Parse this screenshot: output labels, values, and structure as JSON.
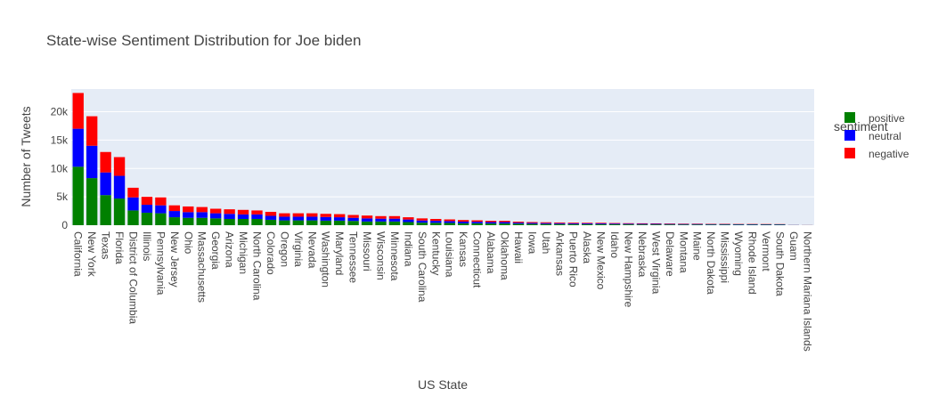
{
  "chart_data": {
    "type": "bar",
    "stacked": true,
    "title": "State-wise Sentiment Distribution for Joe biden",
    "xlabel": "US State",
    "ylabel": "Number of Tweets",
    "ylim": [
      0,
      24000
    ],
    "yticks": [
      0,
      5000,
      10000,
      15000,
      20000
    ],
    "ytick_labels": [
      "0",
      "5k",
      "10k",
      "15k",
      "20k"
    ],
    "grid": true,
    "legend_title": "sentiment",
    "legend_position": "top-right",
    "plot_background": "#e5ecf6",
    "categories": [
      "California",
      "New York",
      "Texas",
      "Florida",
      "District of Columbia",
      "Illinois",
      "Pennsylvania",
      "New Jersey",
      "Ohio",
      "Massachusetts",
      "Georgia",
      "Arizona",
      "Michigan",
      "North Carolina",
      "Colorado",
      "Oregon",
      "Virginia",
      "Nevada",
      "Washington",
      "Maryland",
      "Tennessee",
      "Missouri",
      "Wisconsin",
      "Minnesota",
      "Indiana",
      "South Carolina",
      "Kentucky",
      "Louisiana",
      "Kansas",
      "Connecticut",
      "Alabama",
      "Oklahoma",
      "Hawaii",
      "Iowa",
      "Utah",
      "Arkansas",
      "Puerto Rico",
      "Alaska",
      "New Mexico",
      "Idaho",
      "New Hampshire",
      "Nebraska",
      "West Virginia",
      "Delaware",
      "Montana",
      "Maine",
      "North Dakota",
      "Mississippi",
      "Wyoming",
      "Rhode Island",
      "Vermont",
      "South Dakota",
      "Guam",
      "Northern Mariana Islands"
    ],
    "series": [
      {
        "name": "positive",
        "color": "#008000",
        "values": [
          10300,
          8300,
          5300,
          4700,
          2600,
          2200,
          2100,
          1400,
          1300,
          1300,
          1200,
          1100,
          1100,
          1100,
          950,
          850,
          850,
          850,
          800,
          800,
          750,
          650,
          650,
          650,
          550,
          450,
          420,
          400,
          330,
          330,
          300,
          300,
          250,
          220,
          200,
          190,
          180,
          170,
          170,
          150,
          140,
          130,
          130,
          120,
          110,
          110,
          100,
          100,
          90,
          90,
          80,
          80,
          20,
          10
        ]
      },
      {
        "name": "neutral",
        "color": "#0000ff",
        "values": [
          6700,
          5700,
          4000,
          4000,
          2300,
          1400,
          1400,
          1100,
          1000,
          1000,
          900,
          900,
          800,
          800,
          700,
          650,
          650,
          650,
          650,
          600,
          550,
          550,
          500,
          500,
          450,
          380,
          350,
          320,
          300,
          280,
          250,
          250,
          200,
          180,
          170,
          160,
          150,
          140,
          140,
          130,
          120,
          110,
          110,
          100,
          100,
          100,
          90,
          90,
          80,
          80,
          70,
          70,
          20,
          10
        ]
      },
      {
        "name": "negative",
        "color": "#ff0000",
        "values": [
          6300,
          5200,
          3600,
          3300,
          1700,
          1400,
          1400,
          1000,
          1000,
          900,
          800,
          800,
          800,
          700,
          700,
          600,
          600,
          600,
          550,
          550,
          500,
          500,
          450,
          450,
          400,
          370,
          330,
          300,
          280,
          250,
          220,
          220,
          170,
          150,
          140,
          130,
          120,
          110,
          110,
          100,
          90,
          90,
          80,
          80,
          70,
          70,
          60,
          60,
          50,
          50,
          50,
          40,
          10,
          10
        ]
      }
    ]
  }
}
